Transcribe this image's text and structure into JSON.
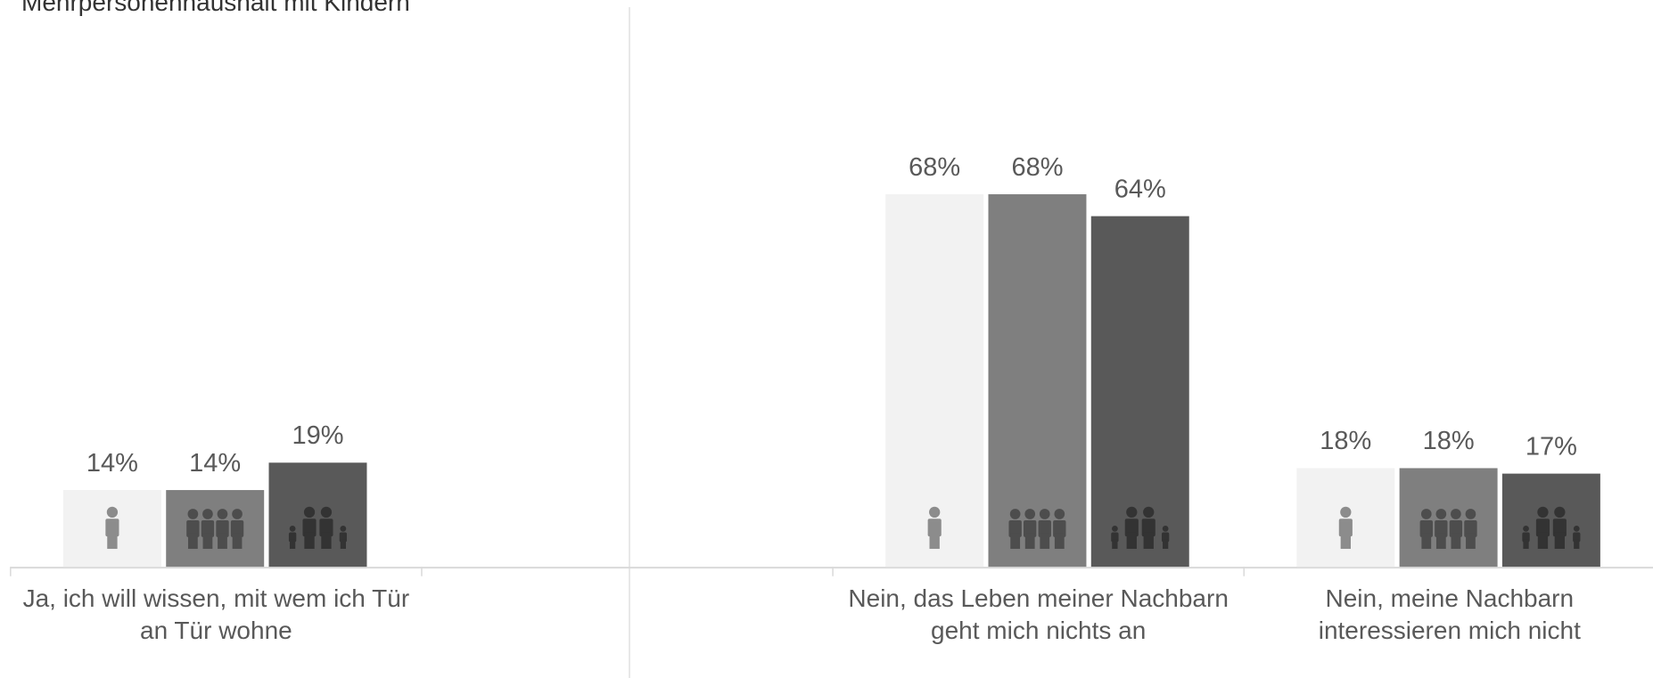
{
  "chart_data": {
    "type": "bar",
    "categories": [
      "Ja, ich will wissen, mit wem ich Tür an Tür wohne",
      null,
      "Nein, das Leben meiner Nachbarn geht mich nichts an",
      "Nein, meine Nachbarn interessieren mich nicht"
    ],
    "series": [
      {
        "color": "#f2f2f2",
        "values": [
          14,
          null,
          68,
          18
        ],
        "value_labels": [
          "14%",
          null,
          "68%",
          "18%"
        ]
      },
      {
        "color": "#7f7f7f",
        "values": [
          14,
          null,
          68,
          18
        ],
        "value_labels": [
          "14%",
          null,
          "68%",
          "18%"
        ]
      },
      {
        "name": "Mehrpersonenhaushalt mit Kindern",
        "color": "#595959",
        "values": [
          19,
          null,
          64,
          17
        ],
        "value_labels": [
          "19%",
          null,
          "64%",
          "17%"
        ]
      }
    ]
  }
}
